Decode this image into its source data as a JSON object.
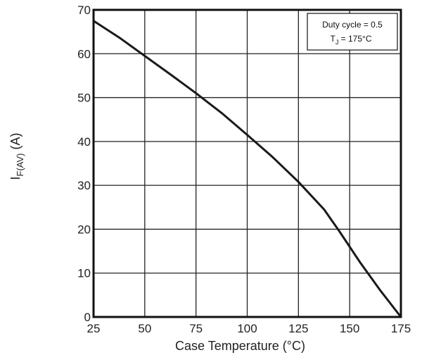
{
  "chart_data": {
    "type": "line",
    "xlabel": "Case Temperature (°C)",
    "ylabel": {
      "prefix": "I",
      "subscript": "F(AV)",
      "suffix": " (A)"
    },
    "x_ticks": [
      25,
      50,
      75,
      100,
      125,
      150,
      175
    ],
    "y_ticks": [
      0,
      10,
      20,
      30,
      40,
      50,
      60,
      70
    ],
    "xlim": [
      25,
      175
    ],
    "ylim": [
      0,
      70
    ],
    "grid": true,
    "legend_position": "top-right",
    "annotation": {
      "line1": "Duty cycle = 0.5",
      "line2_prefix": "T",
      "line2_sub": "J",
      "line2_suffix": " = 175°C"
    },
    "series": [
      {
        "x": [
          25,
          37.5,
          50,
          62.5,
          75,
          87.5,
          100,
          112.5,
          125,
          137.5,
          145,
          155,
          165,
          175
        ],
        "y": [
          67.5,
          63.7,
          59.5,
          55.3,
          51,
          46.5,
          41.5,
          36.4,
          30.8,
          24.5,
          19.5,
          12.5,
          6,
          0
        ]
      }
    ],
    "colors": {
      "line": "#1a1a1a",
      "grid": "#222222",
      "frame": "#111111"
    }
  }
}
